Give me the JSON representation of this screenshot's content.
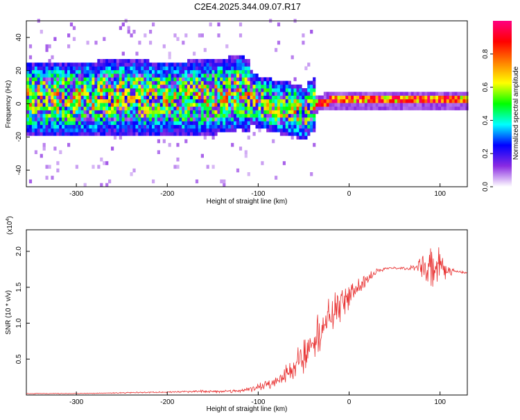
{
  "title": "C2E4.2025.344.09.07.R17",
  "colors": {
    "snr_line": "#e83030",
    "axis": "#000000"
  },
  "chart_data": [
    {
      "type": "heatmap",
      "name": "spectrogram",
      "xlabel": "Height of straight line (km)",
      "ylabel": "Frequency (Hz)",
      "xlim": [
        -355,
        130
      ],
      "ylim": [
        -50,
        50
      ],
      "x_ticks": [
        -300,
        -200,
        -100,
        0,
        100
      ],
      "y_ticks": [
        -40,
        -20,
        0,
        20,
        40
      ],
      "colorbar": {
        "label": "Normalized spectral amplitude",
        "range": [
          0,
          1
        ],
        "ticks": [
          0.0,
          0.2,
          0.4,
          0.6,
          0.8
        ],
        "tick_labels": [
          "0.0",
          "0.2",
          "0.4",
          "0.6",
          "0.8"
        ],
        "colormap": [
          "#ffffff",
          "#8a2be2",
          "#0000ff",
          "#00ffff",
          "#00ff00",
          "#ffff00",
          "#ff8000",
          "#ff0000",
          "#ff0080"
        ]
      },
      "ridge_frequency": [
        {
          "x": -355,
          "f": 2
        },
        {
          "x": -300,
          "f": 2
        },
        {
          "x": -250,
          "f": 3
        },
        {
          "x": -200,
          "f": 2
        },
        {
          "x": -150,
          "f": 3
        },
        {
          "x": -120,
          "f": 6
        },
        {
          "x": -100,
          "f": 0
        },
        {
          "x": -80,
          "f": -3
        },
        {
          "x": -60,
          "f": -5
        },
        {
          "x": -50,
          "f": -8
        },
        {
          "x": -45,
          "f": -3
        },
        {
          "x": -30,
          "f": 0
        },
        {
          "x": -20,
          "f": 1
        },
        {
          "x": 0,
          "f": 1
        },
        {
          "x": 50,
          "f": 1
        },
        {
          "x": 100,
          "f": 1
        },
        {
          "x": 130,
          "f": 1
        }
      ]
    },
    {
      "type": "line",
      "name": "snr",
      "xlabel": "Height of straight line (km)",
      "ylabel": "SNR (10 * v/v)",
      "y_multiplier": "(x10",
      "y_multiplier_exp": "4",
      "y_multiplier_close": ")",
      "xlim": [
        -355,
        130
      ],
      "ylim": [
        0,
        2.3
      ],
      "x_ticks": [
        -300,
        -200,
        -100,
        0,
        100
      ],
      "y_ticks": [
        0.5,
        1.0,
        1.5,
        2.0
      ],
      "y_tick_labels": [
        "0.5",
        "1.0",
        "1.5",
        "2.0"
      ],
      "series": [
        {
          "name": "SNR",
          "x": [
            -355,
            -300,
            -250,
            -200,
            -160,
            -140,
            -120,
            -100,
            -90,
            -80,
            -70,
            -60,
            -50,
            -40,
            -30,
            -20,
            -10,
            0,
            10,
            20,
            30,
            40,
            50,
            60,
            70,
            80,
            90,
            100,
            110,
            120,
            130
          ],
          "y": [
            0.02,
            0.02,
            0.03,
            0.04,
            0.05,
            0.05,
            0.06,
            0.1,
            0.15,
            0.22,
            0.3,
            0.4,
            0.55,
            0.75,
            0.95,
            1.1,
            1.25,
            1.35,
            1.5,
            1.62,
            1.72,
            1.76,
            1.77,
            1.76,
            1.77,
            1.78,
            1.8,
            1.76,
            1.72,
            1.71,
            1.7
          ],
          "noise": [
            0.005,
            0.005,
            0.008,
            0.01,
            0.02,
            0.02,
            0.03,
            0.06,
            0.08,
            0.1,
            0.14,
            0.18,
            0.25,
            0.3,
            0.3,
            0.28,
            0.25,
            0.2,
            0.15,
            0.08,
            0.04,
            0.02,
            0.02,
            0.02,
            0.04,
            0.15,
            0.3,
            0.3,
            0.06,
            0.02,
            0.02
          ]
        }
      ]
    }
  ]
}
